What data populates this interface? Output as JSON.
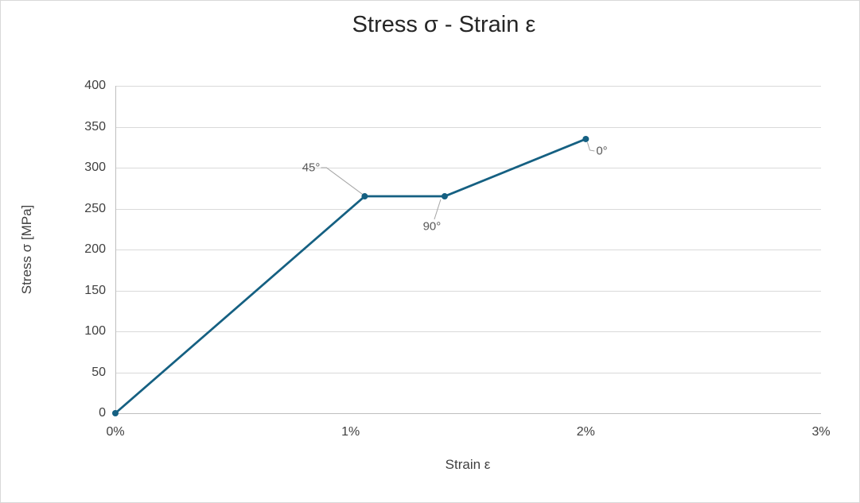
{
  "window": {
    "background": "#ffffff",
    "border_color": "#d9d9d9"
  },
  "colors": {
    "series": "#156082",
    "gridline": "#d9d9d9",
    "axis_line": "#bfbfbf",
    "leader_line": "#a6a6a6",
    "title_text": "#262626",
    "tick_text": "#404040",
    "annotation_text": "#595959"
  },
  "chart_data": {
    "type": "line",
    "title": "Stress σ - Strain ε",
    "xlabel": "Strain ε",
    "ylabel": "Stress σ [MPa]",
    "xlim": [
      0,
      3
    ],
    "ylim": [
      0,
      400
    ],
    "x_unit": "%",
    "y_unit": "MPa",
    "x_ticks": [
      0,
      1,
      2,
      3
    ],
    "x_tick_labels": [
      "0%",
      "1%",
      "2%",
      "3%"
    ],
    "y_ticks": [
      0,
      50,
      100,
      150,
      200,
      250,
      300,
      350,
      400
    ],
    "y_tick_labels": [
      "0",
      "50",
      "100",
      "150",
      "200",
      "250",
      "300",
      "350",
      "400"
    ],
    "grid": "horizontal-only",
    "legend": "none",
    "series": [
      {
        "name": "stress-strain-curve",
        "color": "#156082",
        "marker": "circle",
        "points": [
          {
            "strain_pct": 0,
            "stress_mpa": 0
          },
          {
            "strain_pct": 1.06,
            "stress_mpa": 265
          },
          {
            "strain_pct": 1.4,
            "stress_mpa": 265
          },
          {
            "strain_pct": 2.0,
            "stress_mpa": 335
          }
        ]
      }
    ],
    "annotations": [
      {
        "label": "45°",
        "point_index": 1,
        "strain_pct": 1.06,
        "stress_mpa": 265
      },
      {
        "label": "90°",
        "point_index": 2,
        "strain_pct": 1.4,
        "stress_mpa": 265
      },
      {
        "label": "0°",
        "point_index": 3,
        "strain_pct": 2.0,
        "stress_mpa": 335
      }
    ]
  }
}
